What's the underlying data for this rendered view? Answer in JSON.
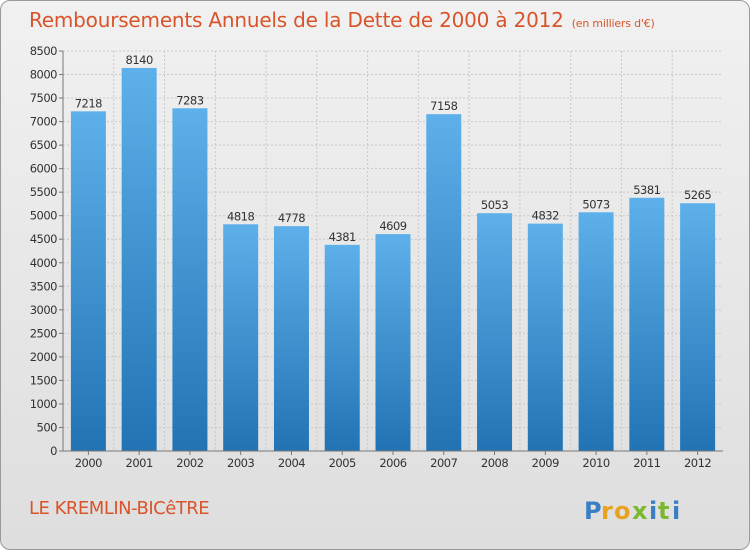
{
  "title": "Remboursements Annuels de la Dette de 2000 à 2012",
  "subtitle": "(en milliers d'€)",
  "city": "LE KREMLIN-BICêTRE",
  "brand": "Proxiti",
  "colors": {
    "title_text": "#d9542a",
    "bar_top": "#5eb0ea",
    "bar_bottom": "#2173b4"
  },
  "chart_data": {
    "type": "bar",
    "title": "Remboursements Annuels de la Dette de 2000 à 2012",
    "subtitle": "(en milliers d'€)",
    "categories": [
      "2000",
      "2001",
      "2002",
      "2003",
      "2004",
      "2005",
      "2006",
      "2007",
      "2008",
      "2009",
      "2010",
      "2011",
      "2012"
    ],
    "values": [
      7218,
      8140,
      7283,
      4818,
      4778,
      4381,
      4609,
      7158,
      5053,
      4832,
      5073,
      5381,
      5265
    ],
    "data_labels": [
      "7218",
      "8140",
      "7283",
      "4818",
      "4778",
      "4381",
      "4609",
      "7158",
      "5053",
      "4832",
      "5073",
      "5381",
      "5265"
    ],
    "ylim": [
      0,
      8500
    ],
    "yticks": [
      0,
      500,
      1000,
      1500,
      2000,
      2500,
      3000,
      3500,
      4000,
      4500,
      5000,
      5500,
      6000,
      6500,
      7000,
      7500,
      8000,
      8500
    ],
    "ytick_labels": [
      "0",
      "500",
      "1000",
      "1500",
      "2000",
      "2500",
      "3000",
      "3500",
      "4000",
      "4500",
      "5000",
      "5500",
      "6000",
      "6500",
      "7000",
      "7500",
      "8000",
      "8500"
    ],
    "grid": true,
    "legend": "none"
  }
}
